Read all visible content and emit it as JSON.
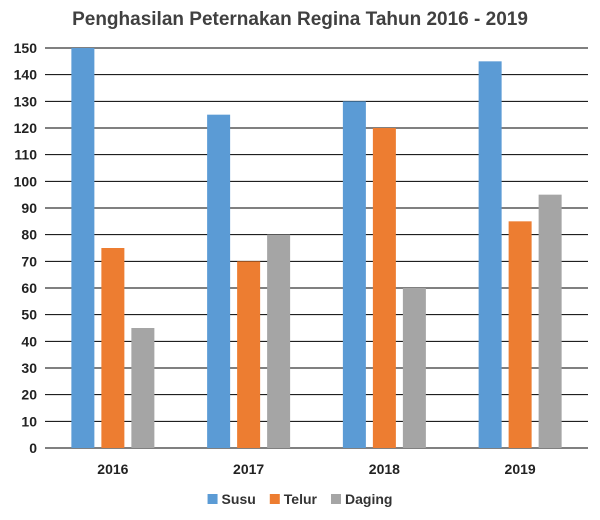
{
  "chart_data": {
    "type": "bar",
    "title": "Penghasilan Peternakan Regina Tahun 2016 - 2019",
    "xlabel": "",
    "ylabel": "",
    "categories": [
      "2016",
      "2017",
      "2018",
      "2019"
    ],
    "series": [
      {
        "name": "Susu",
        "values": [
          150,
          125,
          130,
          145
        ],
        "color": "#5b9bd5"
      },
      {
        "name": "Telur",
        "values": [
          75,
          70,
          120,
          85
        ],
        "color": "#ed7d31"
      },
      {
        "name": "Daging",
        "values": [
          45,
          80,
          60,
          95
        ],
        "color": "#a5a5a5"
      }
    ],
    "ylim": [
      0,
      150
    ],
    "yticks": [
      0,
      10,
      20,
      30,
      40,
      50,
      60,
      70,
      80,
      90,
      100,
      110,
      120,
      130,
      140,
      150
    ],
    "grid": true,
    "legend": "bottom"
  }
}
